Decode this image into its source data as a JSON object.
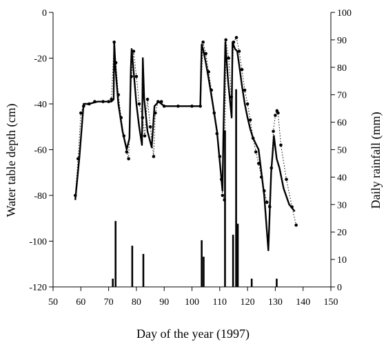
{
  "chart_data": {
    "type": "line",
    "xlabel": "Day of the year (1997)",
    "ylabel": "Water table depth (cm)",
    "y2label": "Daily rainfall (mm)",
    "xlim": [
      50,
      150
    ],
    "ylim": [
      -120,
      0
    ],
    "y2lim": [
      0,
      100
    ],
    "xticks": [
      50,
      60,
      70,
      80,
      90,
      100,
      110,
      120,
      130,
      140,
      150
    ],
    "yticks": [
      -120,
      -100,
      -80,
      -60,
      -40,
      -20,
      0
    ],
    "y2ticks": [
      0,
      10,
      20,
      30,
      40,
      50,
      60,
      70,
      80,
      90,
      100
    ],
    "series": [
      {
        "style": "solid-line",
        "x": [
          58,
          59.5,
          61,
          63,
          66,
          69,
          71,
          71.8,
          72,
          72.5,
          73.5,
          75,
          76.5,
          77.5,
          78,
          78.3,
          79,
          80,
          81,
          82,
          82.3,
          82.8,
          84,
          85.5,
          86.5,
          88,
          90,
          95,
          100,
          103,
          103.5,
          104,
          105,
          106,
          107.5,
          109,
          110,
          111,
          111.3,
          112,
          113,
          114.3,
          114.6,
          115.5,
          116.3,
          117,
          118,
          119,
          120,
          121,
          122,
          124,
          126,
          127.5,
          128.5,
          129.5,
          130.5,
          131.5,
          133,
          135,
          137
        ],
        "y": [
          -82,
          -63,
          -40,
          -40,
          -39,
          -39,
          -39,
          -38,
          -13,
          -25,
          -40,
          -52,
          -60,
          -55,
          -25,
          -16,
          -26,
          -40,
          -50,
          -58,
          -20,
          -38,
          -52,
          -59,
          -41,
          -39,
          -41,
          -41,
          -41,
          -41,
          -14,
          -16,
          -22,
          -29,
          -40,
          -52,
          -65,
          -78,
          -55,
          -13,
          -30,
          -46,
          -13,
          -16,
          -17,
          -23,
          -32,
          -40,
          -46,
          -51,
          -55,
          -60,
          -80,
          -104,
          -70,
          -54,
          -64,
          -68,
          -77,
          -84,
          -87
        ]
      },
      {
        "style": "dotted-markers",
        "x": [
          58,
          59,
          60,
          61,
          63,
          65,
          68,
          70,
          71,
          72,
          72.6,
          73.5,
          74.5,
          75.5,
          76.5,
          77.2,
          78.2,
          79,
          80,
          81,
          82.2,
          83,
          84,
          85,
          86.2,
          86.8,
          87.8,
          89,
          90,
          95,
          100,
          103,
          104,
          105,
          106,
          107,
          108,
          109,
          110,
          110.6,
          111,
          111.7,
          112.2,
          113.2,
          114.2,
          115,
          116,
          117,
          118,
          119,
          120,
          121,
          122,
          123,
          124,
          125,
          126,
          127,
          128,
          128.6,
          129.3,
          130,
          130.6,
          131,
          132,
          134,
          136,
          137.5
        ],
        "y": [
          -80,
          -64,
          -44,
          -41,
          -40,
          -39,
          -39,
          -39,
          -38,
          -13,
          -22,
          -36,
          -46,
          -54,
          -61,
          -64,
          -28,
          -17,
          -28,
          -40,
          -46,
          -54,
          -38,
          -50,
          -63,
          -44,
          -39,
          -39,
          -41,
          -41,
          -41,
          -41,
          -13,
          -18,
          -26,
          -34,
          -44,
          -53,
          -63,
          -73,
          -80,
          -82,
          -12,
          -20,
          -37,
          -13,
          -11,
          -17,
          -25,
          -34,
          -40,
          -47,
          -55,
          -61,
          -66,
          -72,
          -78,
          -83,
          -85,
          -68,
          -52,
          -45,
          -43,
          -44,
          -58,
          -73,
          -85,
          -93
        ]
      },
      {
        "style": "bars",
        "axis": "y2",
        "x": [
          71.5,
          72.5,
          78.5,
          82.5,
          103.5,
          104.2,
          111.9,
          114.8,
          115.9,
          116.5,
          121.5,
          130.5
        ],
        "values": [
          3,
          24,
          15,
          12,
          17,
          11,
          57,
          19,
          72,
          23,
          3,
          3
        ]
      }
    ]
  }
}
